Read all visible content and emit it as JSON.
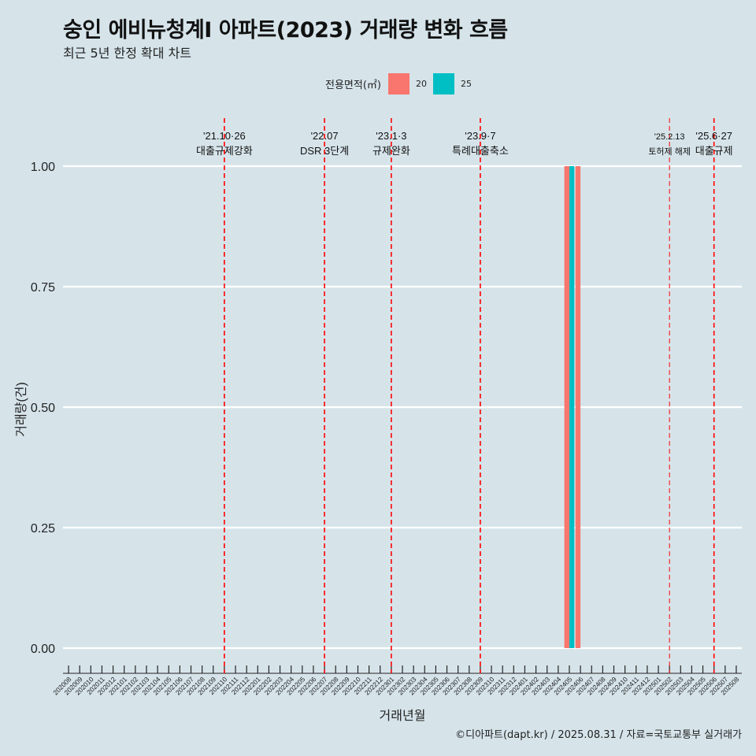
{
  "header": {
    "title": "숭인 에비뉴청계Ⅰ 아파트(2023) 거래량 변화 흐름",
    "subtitle": "최근 5년 한정 확대 차트"
  },
  "legend": {
    "title": "전용면적(㎡)",
    "items": [
      {
        "label": "20",
        "color": "#f8766d"
      },
      {
        "label": "25",
        "color": "#00bfc4"
      }
    ]
  },
  "caption": "©디아파트(dapt.kr) / 2025.08.31 / 자료=국토교통부 실거래가",
  "chart_data": {
    "type": "bar",
    "xlabel": "거래년월",
    "ylabel": "거래량(건)",
    "ylim": [
      0,
      1
    ],
    "yticks": [
      "0.00",
      "0.25",
      "0.50",
      "0.75",
      "1.00"
    ],
    "grid": true,
    "legend_position": "top",
    "categories": [
      "202008",
      "202009",
      "202010",
      "202011",
      "202012",
      "202101",
      "202102",
      "202103",
      "202104",
      "202105",
      "202106",
      "202107",
      "202108",
      "202109",
      "202110",
      "202111",
      "202112",
      "202201",
      "202202",
      "202203",
      "202204",
      "202205",
      "202206",
      "202207",
      "202208",
      "202209",
      "202210",
      "202211",
      "202212",
      "202301",
      "202302",
      "202303",
      "202304",
      "202305",
      "202306",
      "202307",
      "202308",
      "202309",
      "202310",
      "202311",
      "202312",
      "202401",
      "202402",
      "202403",
      "202404",
      "202405",
      "202406",
      "202407",
      "202408",
      "202409",
      "202410",
      "202411",
      "202412",
      "202501",
      "202502",
      "202503",
      "202504",
      "202505",
      "202506",
      "202507",
      "202508"
    ],
    "bars": [
      {
        "month": "202405",
        "series": "20",
        "value": 1,
        "slot": 0
      },
      {
        "month": "202405",
        "series": "25",
        "value": 1,
        "slot": 1
      },
      {
        "month": "202406",
        "series": "20",
        "value": 1,
        "slot": 0
      }
    ],
    "annotations": [
      {
        "month": "202110",
        "line1": "'21.10·26",
        "line2": "대출규제강화",
        "style": "bold"
      },
      {
        "month": "202207",
        "line1": "'22.07",
        "line2": "DSR 3단계",
        "style": "bold"
      },
      {
        "month": "202301",
        "line1": "'23.1·3",
        "line2": "규제완화",
        "style": "bold"
      },
      {
        "month": "202309",
        "line1": "'23.9·7",
        "line2": "특례대출축소",
        "style": "bold"
      },
      {
        "month": "202502",
        "line1": "'25.2.13",
        "line2": "토허제 해제",
        "style": "thin"
      },
      {
        "month": "202506",
        "line1": "'25.6·27",
        "line2": "대출규제",
        "style": "bold"
      }
    ]
  }
}
